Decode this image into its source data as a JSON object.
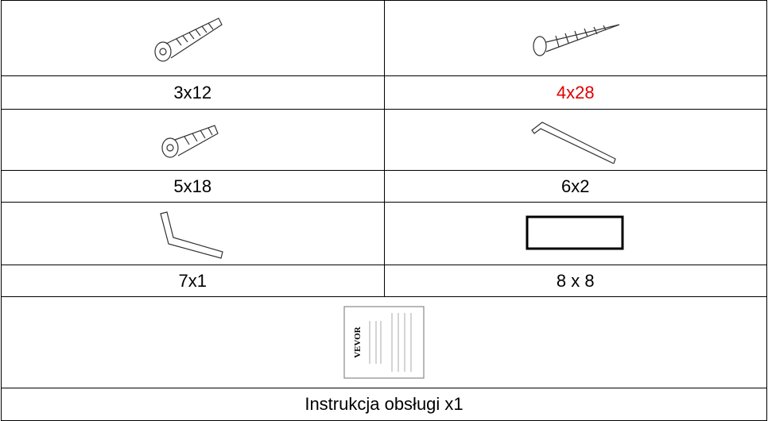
{
  "table": {
    "rows": [
      [
        "3x12",
        "4x28"
      ],
      [
        "5x18",
        "6x2"
      ],
      [
        "7x1",
        "8 x 8"
      ]
    ],
    "manual": {
      "label": "Instrukcja obsługi x1",
      "brand": "VEVOR"
    }
  }
}
